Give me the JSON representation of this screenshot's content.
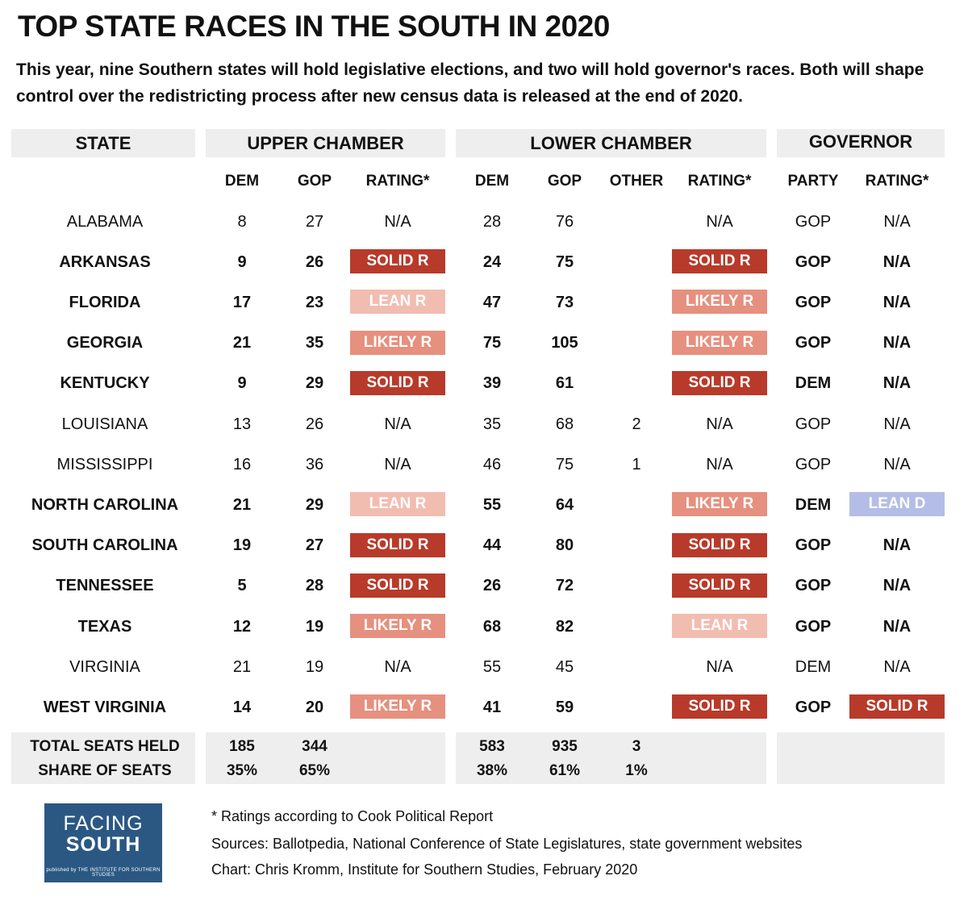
{
  "title": "TOP STATE RACES IN THE SOUTH IN 2020",
  "subtitle": "This year, nine Southern states will hold legislative elections, and two will hold governor's races. Both will shape control over the redistricting process after new census data is released at the end of 2020.",
  "groups": {
    "state": "STATE",
    "upper": "UPPER CHAMBER",
    "lower": "LOWER CHAMBER",
    "governor": "GOVERNOR"
  },
  "columns": {
    "dem": "DEM",
    "gop": "GOP",
    "rating": "RATING*",
    "other": "OTHER",
    "party": "PARTY"
  },
  "rating_colors": {
    "SOLID R": "#b83a2a",
    "LIKELY R": "#e6907f",
    "LEAN R": "#f2bdb1",
    "LEAN D": "#b3bde6"
  },
  "rows": [
    {
      "state": "ALABAMA",
      "bold": false,
      "u_dem": "8",
      "u_gop": "27",
      "u_rating": "N/A",
      "l_dem": "28",
      "l_gop": "76",
      "l_other": "",
      "l_rating": "N/A",
      "g_party": "GOP",
      "g_rating": "N/A"
    },
    {
      "state": "ARKANSAS",
      "bold": true,
      "u_dem": "9",
      "u_gop": "26",
      "u_rating": "SOLID R",
      "l_dem": "24",
      "l_gop": "75",
      "l_other": "",
      "l_rating": "SOLID R",
      "g_party": "GOP",
      "g_rating": "N/A"
    },
    {
      "state": "FLORIDA",
      "bold": true,
      "u_dem": "17",
      "u_gop": "23",
      "u_rating": "LEAN R",
      "l_dem": "47",
      "l_gop": "73",
      "l_other": "",
      "l_rating": "LIKELY R",
      "g_party": "GOP",
      "g_rating": "N/A"
    },
    {
      "state": "GEORGIA",
      "bold": true,
      "u_dem": "21",
      "u_gop": "35",
      "u_rating": "LIKELY R",
      "l_dem": "75",
      "l_gop": "105",
      "l_other": "",
      "l_rating": "LIKELY R",
      "g_party": "GOP",
      "g_rating": "N/A"
    },
    {
      "state": "KENTUCKY",
      "bold": true,
      "u_dem": "9",
      "u_gop": "29",
      "u_rating": "SOLID R",
      "l_dem": "39",
      "l_gop": "61",
      "l_other": "",
      "l_rating": "SOLID R",
      "g_party": "DEM",
      "g_rating": "N/A"
    },
    {
      "state": "LOUISIANA",
      "bold": false,
      "u_dem": "13",
      "u_gop": "26",
      "u_rating": "N/A",
      "l_dem": "35",
      "l_gop": "68",
      "l_other": "2",
      "l_rating": "N/A",
      "g_party": "GOP",
      "g_rating": "N/A"
    },
    {
      "state": "MISSISSIPPI",
      "bold": false,
      "u_dem": "16",
      "u_gop": "36",
      "u_rating": "N/A",
      "l_dem": "46",
      "l_gop": "75",
      "l_other": "1",
      "l_rating": "N/A",
      "g_party": "GOP",
      "g_rating": "N/A"
    },
    {
      "state": "NORTH CAROLINA",
      "bold": true,
      "u_dem": "21",
      "u_gop": "29",
      "u_rating": "LEAN R",
      "l_dem": "55",
      "l_gop": "64",
      "l_other": "",
      "l_rating": "LIKELY R",
      "g_party": "DEM",
      "g_rating": "LEAN D"
    },
    {
      "state": "SOUTH CAROLINA",
      "bold": true,
      "u_dem": "19",
      "u_gop": "27",
      "u_rating": "SOLID R",
      "l_dem": "44",
      "l_gop": "80",
      "l_other": "",
      "l_rating": "SOLID R",
      "g_party": "GOP",
      "g_rating": "N/A"
    },
    {
      "state": "TENNESSEE",
      "bold": true,
      "u_dem": "5",
      "u_gop": "28",
      "u_rating": "SOLID R",
      "l_dem": "26",
      "l_gop": "72",
      "l_other": "",
      "l_rating": "SOLID R",
      "g_party": "GOP",
      "g_rating": "N/A"
    },
    {
      "state": "TEXAS",
      "bold": true,
      "u_dem": "12",
      "u_gop": "19",
      "u_rating": "LIKELY R",
      "l_dem": "68",
      "l_gop": "82",
      "l_other": "",
      "l_rating": "LEAN R",
      "g_party": "GOP",
      "g_rating": "N/A"
    },
    {
      "state": "VIRGINIA",
      "bold": false,
      "u_dem": "21",
      "u_gop": "19",
      "u_rating": "N/A",
      "l_dem": "55",
      "l_gop": "45",
      "l_other": "",
      "l_rating": "N/A",
      "g_party": "DEM",
      "g_rating": "N/A"
    },
    {
      "state": "WEST VIRGINIA",
      "bold": true,
      "u_dem": "14",
      "u_gop": "20",
      "u_rating": "LIKELY R",
      "l_dem": "41",
      "l_gop": "59",
      "l_other": "",
      "l_rating": "SOLID R",
      "g_party": "GOP",
      "g_rating": "SOLID R"
    }
  ],
  "totals": {
    "label1": "TOTAL SEATS HELD",
    "label2": "SHARE OF SEATS",
    "u_dem_total": "185",
    "u_gop_total": "344",
    "u_dem_share": "35%",
    "u_gop_share": "65%",
    "l_dem_total": "583",
    "l_gop_total": "935",
    "l_other_total": "3",
    "l_dem_share": "38%",
    "l_gop_share": "61%",
    "l_other_share": "1%"
  },
  "logo": {
    "line1": "FACING",
    "line2": "SOUTH",
    "line3": "published by THE INSTITUTE FOR SOUTHERN STUDIES"
  },
  "footnotes": {
    "ratings": "* Ratings according to Cook Political Report",
    "sources": "Sources: Ballotpedia, National Conference of State Legislatures, state government websites",
    "credit": "Chart: Chris Kromm, Institute for Southern Studies, February 2020"
  }
}
